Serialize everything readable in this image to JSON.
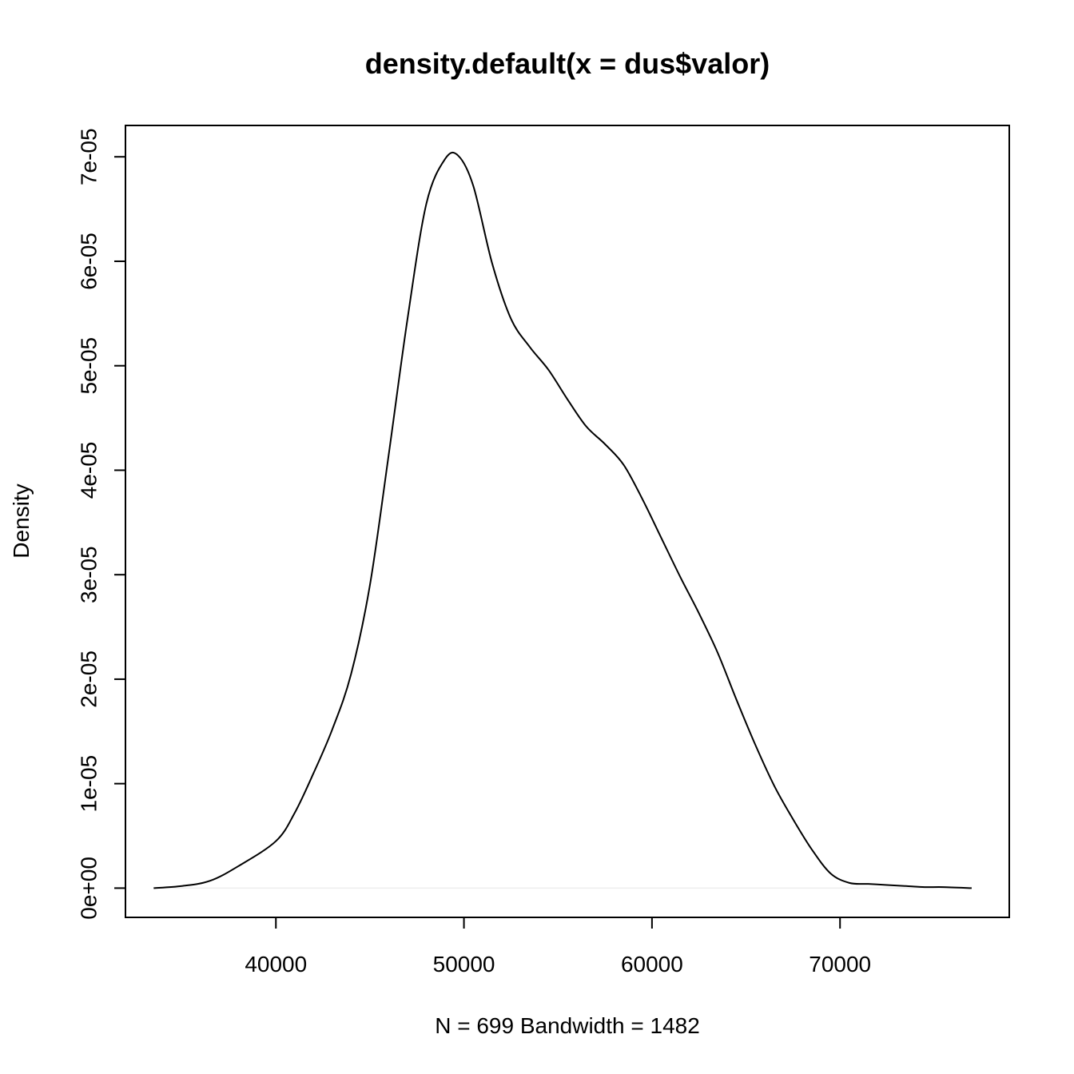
{
  "chart_data": {
    "type": "line",
    "title": "density.default(x = dus$valor)",
    "xlabel": "N = 699   Bandwidth = 1482",
    "ylabel": "Density",
    "xlim": [
      32000,
      79000
    ],
    "ylim": [
      -2.8e-06,
      7.3e-05
    ],
    "x_ticks": [
      40000,
      50000,
      60000,
      70000
    ],
    "x_tick_labels": [
      "40000",
      "50000",
      "60000",
      "70000"
    ],
    "y_ticks": [
      0,
      1e-05,
      2e-05,
      3e-05,
      4e-05,
      5e-05,
      6e-05,
      7e-05
    ],
    "y_tick_labels": [
      "0e+00",
      "1e-05",
      "2e-05",
      "3e-05",
      "4e-05",
      "5e-05",
      "6e-05",
      "7e-05"
    ],
    "zero_line": true,
    "grid": false,
    "series": [
      {
        "color": "#000000",
        "x": [
          33500,
          35000,
          36500,
          38000,
          40000,
          41000,
          42000,
          43000,
          44000,
          45000,
          46000,
          47000,
          48000,
          49000,
          49700,
          50500,
          51500,
          52500,
          53500,
          54500,
          55500,
          56500,
          57500,
          58500,
          59500,
          60500,
          61500,
          62500,
          63500,
          64500,
          65500,
          66500,
          67500,
          68500,
          69500,
          70500,
          71500,
          72500,
          73500,
          74500,
          75500,
          77000
        ],
        "y": [
          0.0,
          2e-07,
          7e-07,
          2.1e-06,
          4.5e-06,
          7.2e-06,
          1.1e-05,
          1.52e-05,
          2.05e-05,
          2.9e-05,
          4.15e-05,
          5.45e-05,
          6.55e-05,
          6.98e-05,
          7.01e-05,
          6.72e-05,
          5.98e-05,
          5.45e-05,
          5.18e-05,
          4.96e-05,
          4.68e-05,
          4.42e-05,
          4.25e-05,
          4.05e-05,
          3.72e-05,
          3.35e-05,
          2.98e-05,
          2.63e-05,
          2.25e-05,
          1.8e-05,
          1.37e-05,
          9.8e-06,
          6.6e-06,
          3.7e-06,
          1.4e-06,
          5e-07,
          4e-07,
          3e-07,
          2e-07,
          1e-07,
          1e-07,
          0.0
        ]
      }
    ]
  }
}
